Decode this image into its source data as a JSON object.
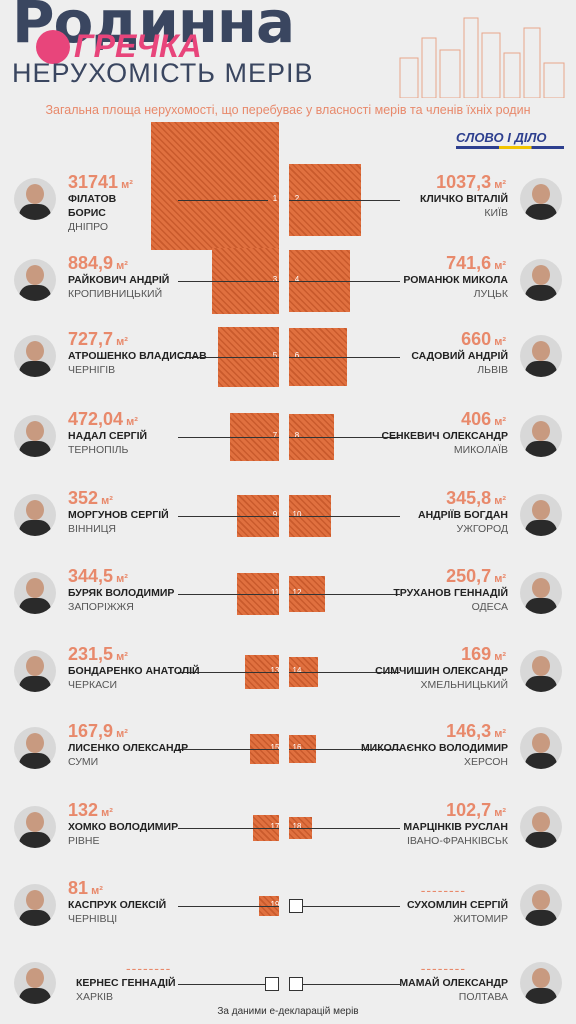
{
  "header": {
    "title_big": "Родинна",
    "logo": "ГРЕЧКА",
    "title_sub": "НЕРУХОМІСТЬ МЕРІВ",
    "subtitle": "Загальна площа нерухомості, що перебуває у власності мерів та членів їхніх родин",
    "brand": "СЛОВО І ДІЛО"
  },
  "source": "За даними е-декларацій мерів",
  "colors": {
    "square": "#e0703f",
    "accent_text": "#e8896b",
    "title": "#3a4660",
    "logo": "#e8457b"
  },
  "unit": "м²",
  "chart_data": {
    "type": "proportional-squares",
    "rows": [
      {
        "left": {
          "rank": "1",
          "area": "31741",
          "value": 31741,
          "name": "ФІЛАТОВ БОРИС",
          "name_lines": [
            "ФІЛАТОВ",
            "БОРИС"
          ],
          "city": "ДНІПРО"
        },
        "right": {
          "rank": "2",
          "area": "1037,3",
          "value": 1037.3,
          "name": "КЛИЧКО ВІТАЛІЙ",
          "city": "КИЇВ"
        }
      },
      {
        "left": {
          "rank": "3",
          "area": "884,9",
          "value": 884.9,
          "name": "РАЙКОВИЧ АНДРІЙ",
          "city": "КРОПИВНИЦЬКИЙ"
        },
        "right": {
          "rank": "4",
          "area": "741,6",
          "value": 741.6,
          "name": "РОМАНЮК МИКОЛА",
          "city": "ЛУЦЬК"
        }
      },
      {
        "left": {
          "rank": "5",
          "area": "727,7",
          "value": 727.7,
          "name": "АТРОШЕНКО ВЛАДИСЛАВ",
          "city": "ЧЕРНІГІВ"
        },
        "right": {
          "rank": "6",
          "area": "660",
          "value": 660,
          "name": "САДОВИЙ АНДРІЙ",
          "city": "ЛЬВІВ"
        }
      },
      {
        "left": {
          "rank": "7",
          "area": "472,04",
          "value": 472.04,
          "name": "НАДАЛ СЕРГІЙ",
          "city": "ТЕРНОПІЛЬ"
        },
        "right": {
          "rank": "8",
          "area": "406",
          "value": 406,
          "name": "СЕНКЕВИЧ ОЛЕКСАНДР",
          "city": "МИКОЛАЇВ"
        }
      },
      {
        "left": {
          "rank": "9",
          "area": "352",
          "value": 352,
          "name": "МОРГУНОВ СЕРГІЙ",
          "city": "ВІННИЦЯ"
        },
        "right": {
          "rank": "10",
          "area": "345,8",
          "value": 345.8,
          "name": "АНДРІЇВ БОГДАН",
          "city": "УЖГОРОД"
        }
      },
      {
        "left": {
          "rank": "11",
          "area": "344,5",
          "value": 344.5,
          "name": "БУРЯК ВОЛОДИМИР",
          "city": "ЗАПОРІЖЖЯ"
        },
        "right": {
          "rank": "12",
          "area": "250,7",
          "value": 250.7,
          "name": "ТРУХАНОВ ГЕННАДІЙ",
          "city": "ОДЕСА"
        }
      },
      {
        "left": {
          "rank": "13",
          "area": "231,5",
          "value": 231.5,
          "name": "БОНДАРЕНКО АНАТОЛІЙ",
          "city": "ЧЕРКАСИ"
        },
        "right": {
          "rank": "14",
          "area": "169",
          "value": 169,
          "name": "СИМЧИШИН ОЛЕКСАНДР",
          "city": "ХМЕЛЬНИЦЬКИЙ"
        }
      },
      {
        "left": {
          "rank": "15",
          "area": "167,9",
          "value": 167.9,
          "name": "ЛИСЕНКО ОЛЕКСАНДР",
          "city": "СУМИ"
        },
        "right": {
          "rank": "16",
          "area": "146,3",
          "value": 146.3,
          "name": "МИКОЛАЄНКО ВОЛОДИМИР",
          "city": "ХЕРСОН"
        }
      },
      {
        "left": {
          "rank": "17",
          "area": "132",
          "value": 132,
          "name": "ХОМКО ВОЛОДИМИР",
          "city": "РІВНЕ"
        },
        "right": {
          "rank": "18",
          "area": "102,7",
          "value": 102.7,
          "name": "МАРЦІНКІВ РУСЛАН",
          "city": "ІВАНО-ФРАНКІВСЬК"
        }
      },
      {
        "left": {
          "rank": "19",
          "area": "81",
          "value": 81,
          "name": "КАСПРУК ОЛЕКСІЙ",
          "city": "ЧЕРНІВЦІ"
        },
        "right": {
          "rank": "",
          "area": "--------",
          "value": null,
          "name": "СУХОМЛИН СЕРГІЙ",
          "city": "ЖИТОМИР"
        }
      },
      {
        "left": {
          "rank": "",
          "area": "--------",
          "value": null,
          "name": "КЕРНЕС ГЕННАДІЙ",
          "city": "ХАРКІВ"
        },
        "right": {
          "rank": "",
          "area": "--------",
          "value": null,
          "name": "МАМАЙ ОЛЕКСАНДР",
          "city": "ПОЛТАВА"
        }
      }
    ]
  }
}
